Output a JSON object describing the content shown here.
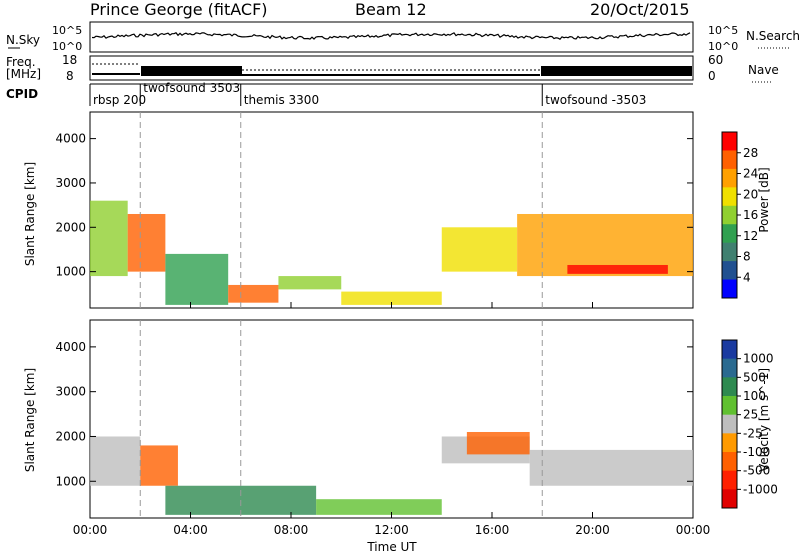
{
  "header": {
    "title": "Prince George (fitACF)",
    "beam": "Beam 12",
    "date": "20/Oct/2015"
  },
  "strips": {
    "nsky": {
      "label": "N.Sky",
      "left_ticks": [
        "10^5",
        "10^0"
      ],
      "right_ticks": [
        "10^5",
        "10^0"
      ],
      "right_label": "N.Search"
    },
    "freq": {
      "label_line1": "Freq.",
      "label_line2": "[MHz]",
      "left_ticks": [
        "18",
        "8"
      ],
      "right_ticks": [
        "60",
        "0"
      ],
      "right_label": "Nave"
    },
    "cpid": {
      "label": "CPID",
      "programs": [
        {
          "name": "rbsp 200",
          "start_hour": 0
        },
        {
          "name": "twofsound 3503",
          "start_hour": 2
        },
        {
          "name": "themis 3300",
          "start_hour": 6
        },
        {
          "name": "twofsound -3503",
          "start_hour": 18
        }
      ]
    }
  },
  "chart_data": [
    {
      "type": "heatmap",
      "panel": "power",
      "ylabel": "Slant Range [km]",
      "y_ticks": [
        1000,
        2000,
        3000,
        4000
      ],
      "ylim": [
        180,
        4600
      ],
      "xlim": [
        0,
        24
      ],
      "colorbar": {
        "label": "Power [dB]",
        "ticks": [
          "28",
          "24",
          "20",
          "16",
          "12",
          "8",
          "4"
        ],
        "colors": [
          "#ff0000",
          "#ff6000",
          "#ffa000",
          "#f0e000",
          "#90d030",
          "#30a050",
          "#408070",
          "#205090",
          "#0000ff"
        ]
      },
      "regions": [
        {
          "t0": 0.0,
          "t1": 1.5,
          "r0": 900,
          "r1": 2600,
          "value": 14
        },
        {
          "t0": 1.5,
          "t1": 3.0,
          "r0": 1000,
          "r1": 2300,
          "value": 24
        },
        {
          "t0": 3.0,
          "t1": 5.5,
          "r0": 250,
          "r1": 1400,
          "value": 10
        },
        {
          "t0": 5.5,
          "t1": 7.5,
          "r0": 300,
          "r1": 700,
          "value": 26
        },
        {
          "t0": 7.5,
          "t1": 10.0,
          "r0": 600,
          "r1": 900,
          "value": 14
        },
        {
          "t0": 10.0,
          "t1": 14.0,
          "r0": 250,
          "r1": 550,
          "value": 16
        },
        {
          "t0": 14.0,
          "t1": 17.0,
          "r0": 1000,
          "r1": 2000,
          "value": 16
        },
        {
          "t0": 17.0,
          "t1": 24.0,
          "r0": 900,
          "r1": 2300,
          "value": 22
        },
        {
          "t0": 19.0,
          "t1": 23.0,
          "r0": 950,
          "r1": 1150,
          "value": 28
        }
      ]
    },
    {
      "type": "heatmap",
      "panel": "velocity",
      "ylabel": "Slant Range [km]",
      "y_ticks": [
        1000,
        2000,
        3000,
        4000
      ],
      "ylim": [
        180,
        4600
      ],
      "xlim": [
        0,
        24
      ],
      "colorbar": {
        "label": "Velocity [m s^-1]",
        "ticks": [
          "1000",
          "500",
          "100",
          "25",
          "-25",
          "-100",
          "-500",
          "-1000"
        ],
        "colors": [
          "#1a3aa0",
          "#2a6a90",
          "#2e8a50",
          "#60c030",
          "#bebebe",
          "#ff9a00",
          "#ff6000",
          "#ff2000",
          "#e00000"
        ]
      },
      "regions": [
        {
          "t0": 0.0,
          "t1": 2.0,
          "r0": 900,
          "r1": 2000,
          "value": 0
        },
        {
          "t0": 2.0,
          "t1": 3.5,
          "r0": 900,
          "r1": 1800,
          "value": -300
        },
        {
          "t0": 3.0,
          "t1": 9.0,
          "r0": 250,
          "r1": 900,
          "value": 100
        },
        {
          "t0": 9.0,
          "t1": 14.0,
          "r0": 250,
          "r1": 600,
          "value": 60
        },
        {
          "t0": 14.0,
          "t1": 17.5,
          "r0": 1400,
          "r1": 2000,
          "value": 0
        },
        {
          "t0": 15.0,
          "t1": 17.5,
          "r0": 1600,
          "r1": 2100,
          "value": -300
        },
        {
          "t0": 17.5,
          "t1": 24.0,
          "r0": 900,
          "r1": 1700,
          "value": 0
        }
      ]
    }
  ],
  "x_axis": {
    "label": "Time UT",
    "ticks": [
      "00:00",
      "04:00",
      "08:00",
      "12:00",
      "16:00",
      "20:00",
      "00:00"
    ],
    "tick_hours": [
      0,
      4,
      8,
      12,
      16,
      20,
      24
    ]
  }
}
